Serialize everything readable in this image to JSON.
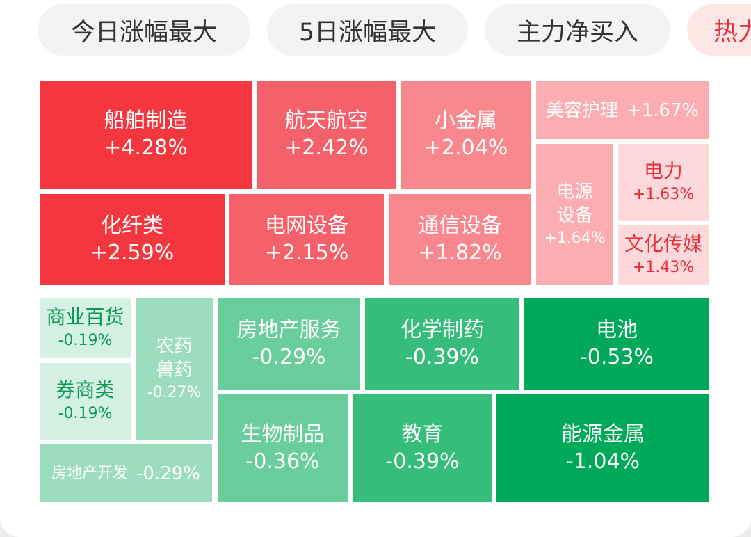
{
  "tabs": [
    {
      "label": "今日涨幅最大",
      "active": false
    },
    {
      "label": "5日涨幅最大",
      "active": false
    },
    {
      "label": "主力净买入",
      "active": false
    },
    {
      "label": "热力",
      "active": true
    }
  ],
  "colors": {
    "red_strong": "#f4363f",
    "red_mid": "#f5616a",
    "red_light": "#f8888d",
    "red_pale": "#fbadb1",
    "red_faint": "#fdd9db",
    "green_strong": "#00a95a",
    "green_mid": "#36bd7c",
    "green_light": "#69cd9c",
    "green_pale": "#9bddbe",
    "green_faint": "#d4f1e3",
    "text_white": "#ffffff",
    "text_red": "#e8303d",
    "text_green": "#0e9a55"
  },
  "heatmap": {
    "sectors": [
      {
        "id": "shipbuilding",
        "name": "船舶制造",
        "change": "+4.28%",
        "change_value": 4.28
      },
      {
        "id": "aerospace",
        "name": "航天航空",
        "change": "+2.42%",
        "change_value": 2.42
      },
      {
        "id": "minor-metals",
        "name": "小金属",
        "change": "+2.04%",
        "change_value": 2.04
      },
      {
        "id": "beauty-care",
        "name": "美容护理",
        "change": "+1.67%",
        "change_value": 1.67
      },
      {
        "id": "power-equipment",
        "name": "电源设备",
        "change": "+1.64%",
        "change_value": 1.64
      },
      {
        "id": "electric-power",
        "name": "电力",
        "change": "+1.63%",
        "change_value": 1.63
      },
      {
        "id": "chemical-fiber",
        "name": "化纤类",
        "change": "+2.59%",
        "change_value": 2.59
      },
      {
        "id": "grid-equipment",
        "name": "电网设备",
        "change": "+2.15%",
        "change_value": 2.15
      },
      {
        "id": "telecom-equipment",
        "name": "通信设备",
        "change": "+1.82%",
        "change_value": 1.82
      },
      {
        "id": "culture-media",
        "name": "文化传媒",
        "change": "+1.43%",
        "change_value": 1.43
      },
      {
        "id": "department-store",
        "name": "商业百货",
        "change": "-0.19%",
        "change_value": -0.19
      },
      {
        "id": "agro-vet",
        "name": "农药兽药",
        "change": "-0.27%",
        "change_value": -0.27
      },
      {
        "id": "real-estate-services",
        "name": "房地产服务",
        "change": "-0.29%",
        "change_value": -0.29
      },
      {
        "id": "chemical-pharma",
        "name": "化学制药",
        "change": "-0.39%",
        "change_value": -0.39
      },
      {
        "id": "battery",
        "name": "电池",
        "change": "-0.53%",
        "change_value": -0.53
      },
      {
        "id": "securities",
        "name": "券商类",
        "change": "-0.19%",
        "change_value": -0.19
      },
      {
        "id": "real-estate-dev",
        "name": "房地产开发",
        "change": "-0.29%",
        "change_value": -0.29
      },
      {
        "id": "bio-products",
        "name": "生物制品",
        "change": "-0.36%",
        "change_value": -0.36
      },
      {
        "id": "education",
        "name": "教育",
        "change": "-0.39%",
        "change_value": -0.39
      },
      {
        "id": "energy-metals",
        "name": "能源金属",
        "change": "-1.04%",
        "change_value": -1.04
      }
    ]
  }
}
